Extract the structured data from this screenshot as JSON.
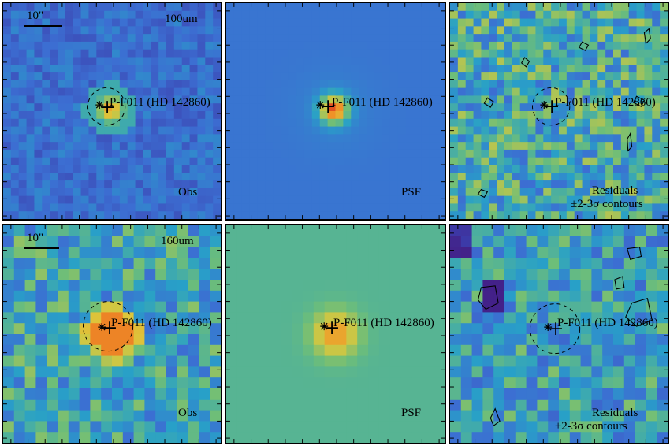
{
  "panels": [
    {
      "id": "p100-obs",
      "band": "100um",
      "scale": "10\"",
      "target": "P-F011 (HD 142860)",
      "kind": "Obs",
      "palette": "blue-obs"
    },
    {
      "id": "p100-psf",
      "band": "",
      "scale": "",
      "target": "P-F011 (HD 142860)",
      "kind": "PSF",
      "palette": "blue-psf"
    },
    {
      "id": "p100-res",
      "band": "",
      "scale": "",
      "target": "P-F011 (HD 142860)",
      "kind": "Residuals",
      "kind2": "±2-3σ contours",
      "palette": "res"
    },
    {
      "id": "p160-obs",
      "band": "160um",
      "scale": "10\"",
      "target": "P-F011 (HD 142860)",
      "kind": "Obs",
      "palette": "obs160"
    },
    {
      "id": "p160-psf",
      "band": "",
      "scale": "",
      "target": "P-F011 (HD 142860)",
      "kind": "PSF",
      "palette": "green-psf"
    },
    {
      "id": "p160-res",
      "band": "",
      "scale": "",
      "target": "P-F011 (HD 142860)",
      "kind": "Residuals",
      "kind2": "±2-3σ contours",
      "palette": "res2"
    }
  ],
  "labels": {
    "scale_bar_top": "10\"",
    "scale_bar_bottom": "10\"",
    "band_top": "100um",
    "band_bottom": "160um",
    "target": "P-F011 (HD 142860)",
    "obs": "Obs",
    "psf": "PSF",
    "residuals": "Residuals",
    "contours": "±2-3σ contours"
  }
}
